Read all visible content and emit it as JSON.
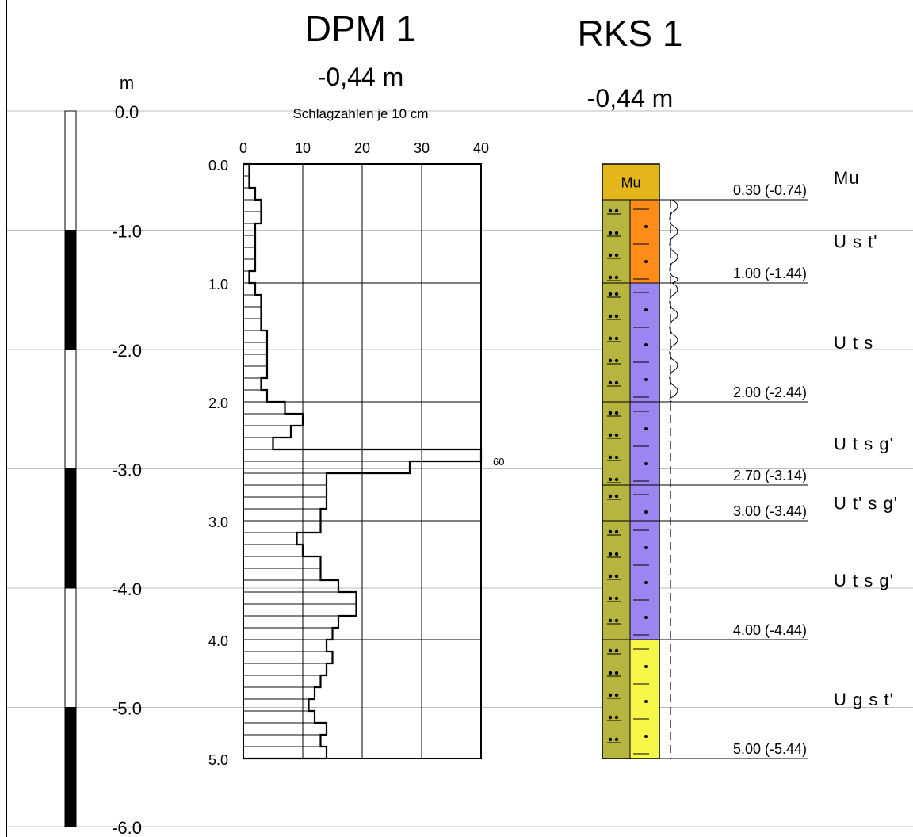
{
  "colors": {
    "grid": "#bdbdbd",
    "mu": "#e3b61c",
    "silt": "#b5b53f",
    "sandy": "#ff8c1a",
    "gravel_sand": "#9b85f0",
    "yellow": "#f7f74a"
  },
  "titles": {
    "dpm_title": "DPM 1",
    "dpm_elev": "-0,44 m",
    "rks_title": "RKS 1",
    "rks_elev": "-0,44 m"
  },
  "scale": {
    "unit": "m",
    "labels": [
      "0.0",
      "-1.0",
      "-2.0",
      "-3.0",
      "-4.0",
      "-5.0",
      "-6.0"
    ]
  },
  "dpm": {
    "caption": "Schlagzahlen je 10 cm",
    "x_ticks": [
      "0",
      "10",
      "20",
      "30",
      "40"
    ],
    "x_max": 40,
    "depth_labels": [
      "0.0",
      "1.0",
      "2.0",
      "3.0",
      "4.0",
      "5.0"
    ],
    "overflow_label": "60",
    "blows": [
      1,
      1,
      2,
      3,
      3,
      2,
      2,
      2,
      2,
      1,
      2,
      3,
      3,
      3,
      4,
      4,
      4,
      4,
      3,
      4,
      7,
      10,
      8,
      5,
      60,
      28,
      14,
      14,
      14,
      13,
      13,
      9,
      10,
      13,
      13,
      16,
      19,
      19,
      16,
      15,
      14,
      15,
      14,
      13,
      12,
      11,
      12,
      14,
      13,
      14
    ]
  },
  "rks": {
    "layers": [
      {
        "top": 0.0,
        "bottom": 0.3,
        "code": "Mu",
        "depth_label": "0.30 (-0.74)",
        "right": "mu",
        "left": "mu",
        "inner_code": "Mu",
        "wavy": false
      },
      {
        "top": 0.3,
        "bottom": 1.0,
        "code": "U s t'",
        "depth_label": "1.00 (-1.44)",
        "left": "silt",
        "right": "sandy",
        "wavy": true
      },
      {
        "top": 1.0,
        "bottom": 2.0,
        "code": "U t s",
        "depth_label": "2.00 (-2.44)",
        "left": "silt",
        "right": "gravel_sand",
        "wavy": true
      },
      {
        "top": 2.0,
        "bottom": 2.7,
        "code": "U t s g'",
        "depth_label": "2.70 (-3.14)",
        "left": "silt",
        "right": "gravel_sand",
        "wavy": false
      },
      {
        "top": 2.7,
        "bottom": 3.0,
        "code": "U t' s g'",
        "depth_label": "3.00 (-3.44)",
        "left": "silt",
        "right": "gravel_sand",
        "wavy": false
      },
      {
        "top": 3.0,
        "bottom": 4.0,
        "code": "U t s g'",
        "depth_label": "4.00 (-4.44)",
        "left": "silt",
        "right": "gravel_sand",
        "wavy": false
      },
      {
        "top": 4.0,
        "bottom": 5.0,
        "code": "U g s t'",
        "depth_label": "5.00 (-5.44)",
        "left": "silt",
        "right": "yellow",
        "wavy": false
      }
    ]
  }
}
